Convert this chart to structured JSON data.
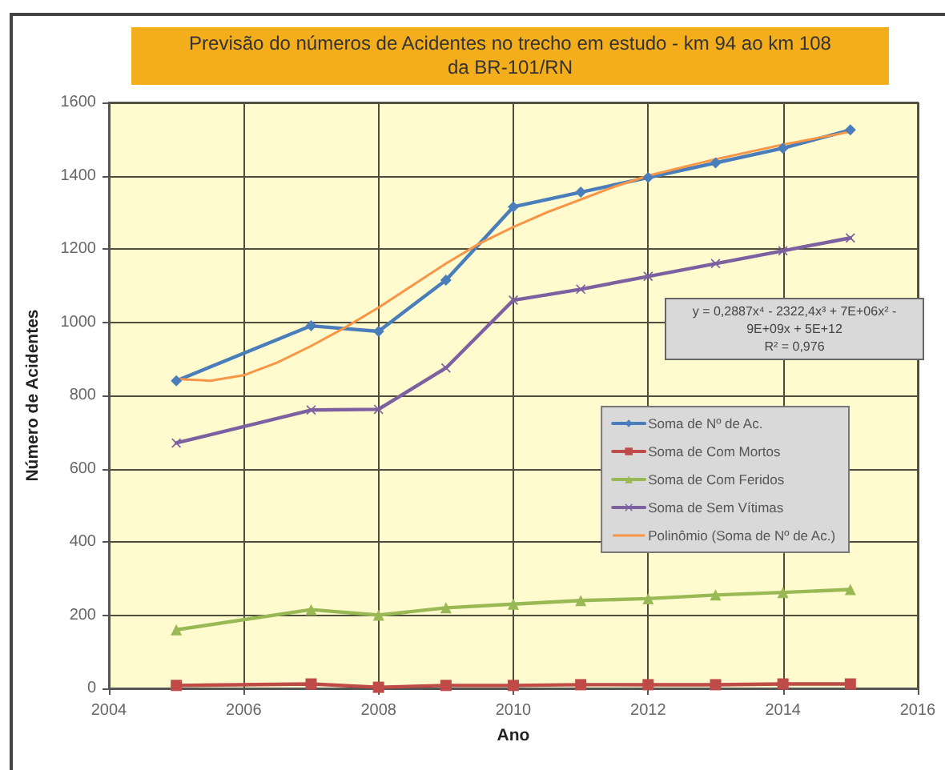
{
  "chart_data": {
    "type": "line",
    "title": "Previsão do números de  Acidentes no trecho em estudo - km 94 ao km 108 da BR-101/RN",
    "xlabel": "Ano",
    "ylabel": "Número de Acidentes",
    "annotations": [
      "y = 0,2887x⁴ - 2322,4x³ + 7E+06x² - 9E+09x + 5E+12",
      "R² = 0,976"
    ],
    "x": [
      2005,
      2007,
      2008,
      2009,
      2010,
      2011,
      2012,
      2013,
      2014,
      2015
    ],
    "series": [
      {
        "name": "Soma de Nº de Ac.",
        "color": "#4a7ebb",
        "marker": "diamond",
        "values": [
          840,
          990,
          975,
          1115,
          1315,
          1355,
          1395,
          1435,
          1475,
          1525
        ]
      },
      {
        "name": "Soma de Com Mortos",
        "color": "#be4b48",
        "marker": "square",
        "values": [
          8,
          12,
          3,
          8,
          8,
          10,
          10,
          10,
          12,
          12
        ]
      },
      {
        "name": "Soma de Com Feridos",
        "color": "#98b954",
        "marker": "triangle",
        "values": [
          160,
          215,
          200,
          220,
          230,
          240,
          245,
          255,
          262,
          270
        ]
      },
      {
        "name": "Soma de Sem Vítimas",
        "color": "#7d60a0",
        "marker": "cross",
        "values": [
          670,
          760,
          762,
          875,
          1060,
          1090,
          1125,
          1160,
          1195,
          1230
        ]
      },
      {
        "name": "Polinômio (Soma de Nº de Ac.)",
        "color": "#f79646",
        "marker": "none",
        "x": [
          2005,
          2005.5,
          2006,
          2006.5,
          2007,
          2007.5,
          2008,
          2008.5,
          2009,
          2009.5,
          2010,
          2010.5,
          2011,
          2011.5,
          2012,
          2013,
          2014,
          2015
        ],
        "values": [
          845,
          840,
          855,
          890,
          935,
          985,
          1040,
          1100,
          1160,
          1215,
          1260,
          1300,
          1335,
          1370,
          1400,
          1445,
          1485,
          1520
        ]
      }
    ],
    "xlim": [
      2004,
      2016
    ],
    "xticks": [
      2004,
      2006,
      2008,
      2010,
      2012,
      2014,
      2016
    ],
    "ylim": [
      0,
      1600
    ],
    "yticks": [
      0,
      200,
      400,
      600,
      800,
      1000,
      1200,
      1400,
      1600
    ],
    "grid": true,
    "legend": "right"
  }
}
